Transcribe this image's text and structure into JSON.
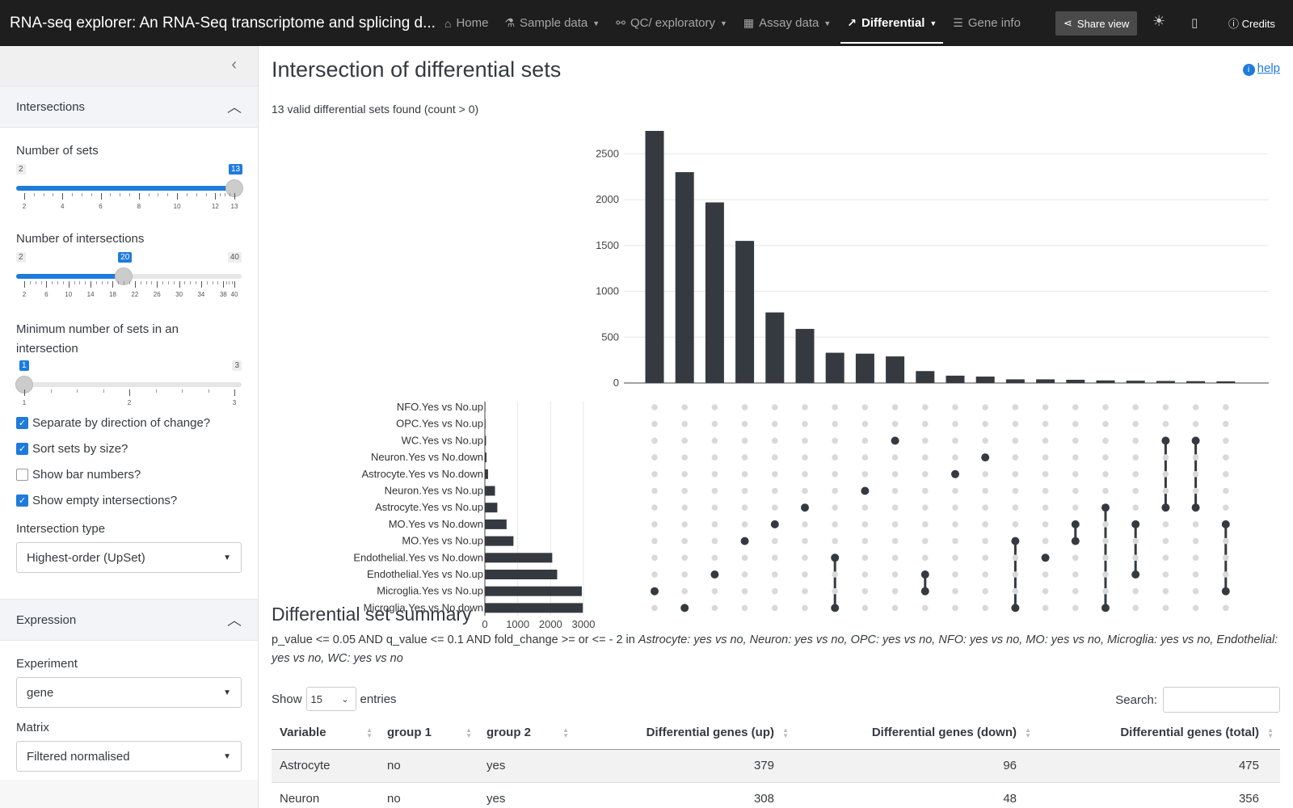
{
  "navbar": {
    "brand": "RNA-seq explorer: An RNA-Seq transcriptome and splicing d...",
    "items": [
      {
        "label": "Home",
        "icon": "home-icon"
      },
      {
        "label": "Sample data",
        "icon": "flask-icon"
      },
      {
        "label": "QC/ exploratory",
        "icon": "binoculars-icon"
      },
      {
        "label": "Assay data",
        "icon": "table-icon"
      },
      {
        "label": "Differential",
        "icon": "line-chart-icon"
      },
      {
        "label": "Gene info",
        "icon": "list-icon"
      }
    ],
    "share_label": "Share view",
    "credits_label": "Credits"
  },
  "sidebar": {
    "intersections": {
      "title": "Intersections",
      "num_sets": {
        "label": "Number of sets",
        "min": 2,
        "max": 13,
        "value": 13,
        "ticks": [
          "2",
          "4",
          "6",
          "8",
          "10",
          "12",
          "13"
        ]
      },
      "num_intersections": {
        "label": "Number of intersections",
        "min": 2,
        "max": 40,
        "value": 20,
        "ticks": [
          "2",
          "6",
          "10",
          "14",
          "18",
          "22",
          "26",
          "30",
          "34",
          "38",
          "40"
        ]
      },
      "min_sets": {
        "label": "Minimum number of sets in an intersection",
        "min": 1,
        "max": 3,
        "value": 1,
        "ticks": [
          "1",
          "2",
          "3"
        ]
      },
      "checks": [
        {
          "label": "Separate by direction of change?",
          "checked": true
        },
        {
          "label": "Sort sets by size?",
          "checked": true
        },
        {
          "label": "Show bar numbers?",
          "checked": false
        },
        {
          "label": "Show empty intersections?",
          "checked": true
        }
      ],
      "type_label": "Intersection type",
      "type_value": "Highest-order (UpSet)"
    },
    "expression": {
      "title": "Expression",
      "experiment_label": "Experiment",
      "experiment_value": "gene",
      "matrix_label": "Matrix",
      "matrix_value": "Filtered normalised"
    }
  },
  "main": {
    "title": "Intersection of differential sets",
    "help_label": "help",
    "sets_found": "13 valid differential sets found (count > 0)",
    "summary_title": "Differential set summary",
    "summary_plain": "p_value <= 0.05 AND q_value <= 0.1 AND fold_change >= or <= - 2 in ",
    "summary_italic": "Astrocyte: yes vs no, Neuron: yes vs no, OPC: yes vs no, NFO: yes vs no, MO: yes vs no, Microglia: yes vs no, Endothelial: yes vs no, WC: yes vs no",
    "show_label": "Show",
    "entries_value": "15",
    "entries_label": "entries",
    "search_label": "Search:",
    "table": {
      "headers": [
        "Variable",
        "group 1",
        "group 2",
        "Differential genes (up)",
        "Differential genes (down)",
        "Differential genes (total)"
      ],
      "rows": [
        [
          "Astrocyte",
          "no",
          "yes",
          "379",
          "96",
          "475"
        ],
        [
          "Neuron",
          "no",
          "yes",
          "308",
          "48",
          "356"
        ]
      ]
    }
  },
  "chart_data": {
    "type": "bar",
    "intersection_bars": {
      "values": [
        2750,
        2300,
        1970,
        1550,
        770,
        590,
        330,
        320,
        290,
        130,
        80,
        70,
        40,
        40,
        35,
        28,
        25,
        22,
        20,
        18
      ],
      "ylim": [
        0,
        2750
      ],
      "yticks": [
        "0",
        "500",
        "1000",
        "1500",
        "2000",
        "2500"
      ]
    },
    "set_bars": {
      "categories": [
        "NFO.Yes vs No.up",
        "OPC.Yes vs No.up",
        "WC.Yes vs No.up",
        "Neuron.Yes vs No.down",
        "Astrocyte.Yes vs No.down",
        "Neuron.Yes vs No.up",
        "Astrocyte.Yes vs No.up",
        "MO.Yes vs No.down",
        "MO.Yes vs No.up",
        "Endothelial.Yes vs No.down",
        "Endothelial.Yes vs No.up",
        "Microglia.Yes vs No.up",
        "Microglia.Yes vs No.down"
      ],
      "values": [
        15,
        20,
        35,
        48,
        96,
        308,
        379,
        660,
        870,
        2050,
        2200,
        2950,
        2980
      ],
      "xlim": [
        0,
        3000
      ],
      "xticks": [
        "0",
        "1000",
        "2000",
        "3000"
      ]
    },
    "matrix": [
      [
        11
      ],
      [
        12
      ],
      [
        10
      ],
      [
        8
      ],
      [
        7
      ],
      [
        6
      ],
      [
        9,
        12
      ],
      [
        5
      ],
      [
        2
      ],
      [
        10,
        11
      ],
      [
        4
      ],
      [
        3
      ],
      [
        8,
        12
      ],
      [
        9
      ],
      [
        7,
        8
      ],
      [
        6,
        12
      ],
      [
        7,
        10
      ],
      [
        2,
        6
      ],
      [
        2,
        6
      ],
      [
        7,
        11
      ]
    ]
  }
}
